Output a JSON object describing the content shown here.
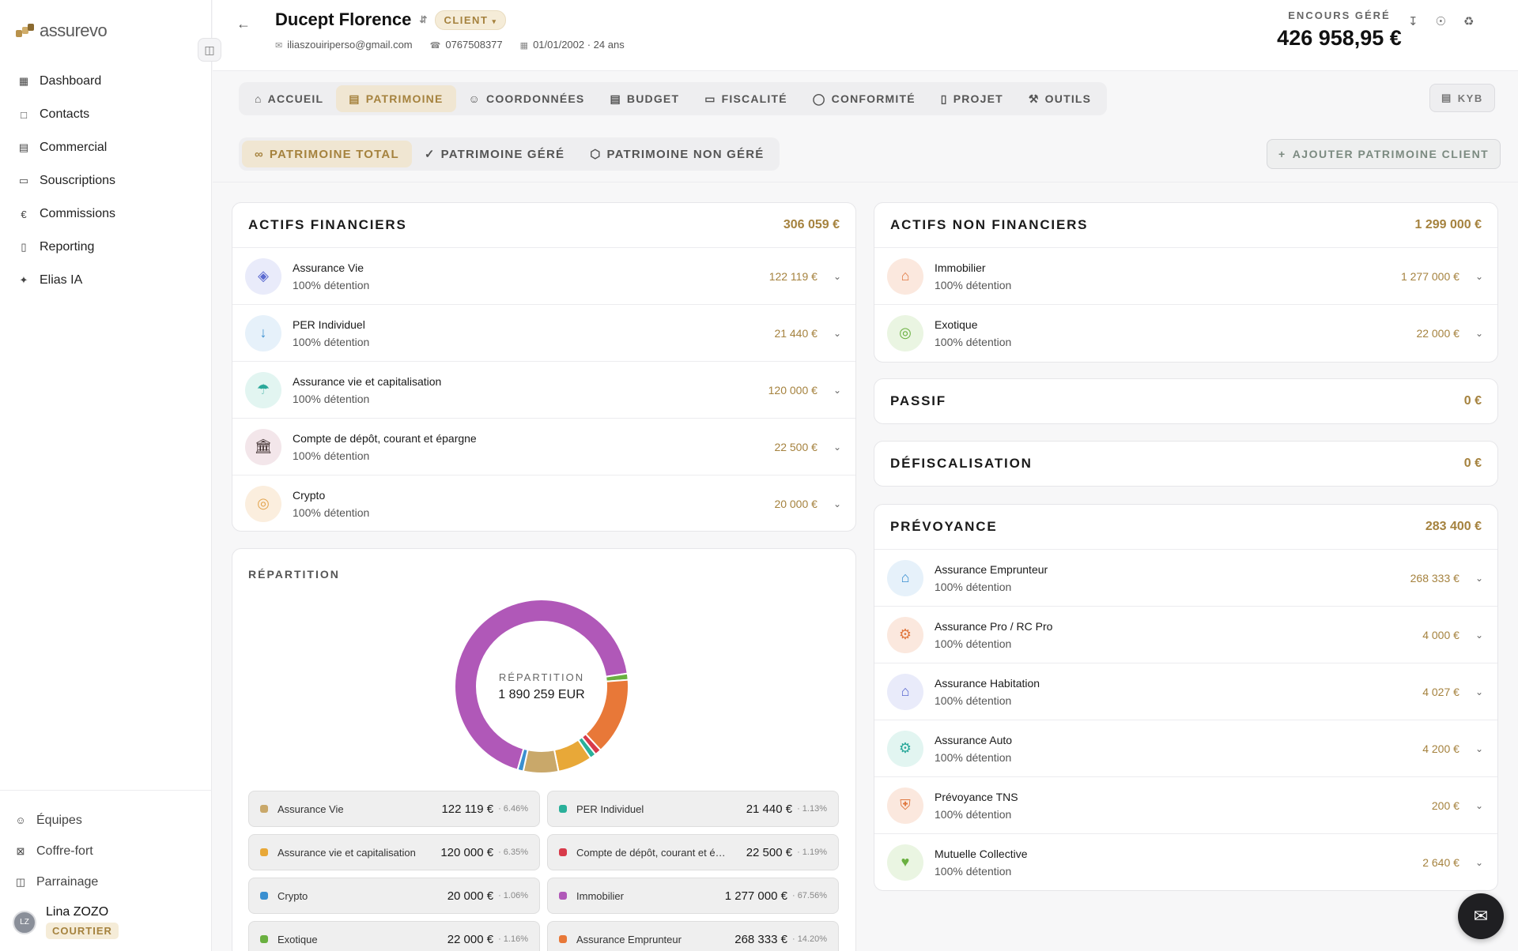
{
  "brand": {
    "name": "assurevo",
    "accent": "#a5823e"
  },
  "sidebar": {
    "items": [
      {
        "label": "Dashboard",
        "icon": "grid-icon"
      },
      {
        "label": "Contacts",
        "icon": "contact-icon"
      },
      {
        "label": "Commercial",
        "icon": "building-icon"
      },
      {
        "label": "Souscriptions",
        "icon": "document-icon"
      },
      {
        "label": "Commissions",
        "icon": "euro-icon"
      },
      {
        "label": "Reporting",
        "icon": "bar-chart-icon"
      },
      {
        "label": "Elias IA",
        "icon": "sparkle-icon"
      }
    ],
    "bottom": [
      {
        "label": "Équipes",
        "icon": "users-icon"
      },
      {
        "label": "Coffre-fort",
        "icon": "vault-icon"
      },
      {
        "label": "Parrainage",
        "icon": "gift-icon"
      }
    ],
    "user": {
      "initials": "LZ",
      "name": "Lina ZOZO",
      "role": "COURTIER"
    }
  },
  "header": {
    "client_name": "Ducept Florence",
    "badge": "CLIENT",
    "email": "iliaszouiriperso@gmail.com",
    "phone": "0767508377",
    "birth": "01/01/2002 · 24 ans",
    "encours_label": "ENCOURS GÉRÉ",
    "encours_value": "426 958,95 €"
  },
  "tabs": [
    "ACCUEIL",
    "PATRIMOINE",
    "COORDONNÉES",
    "BUDGET",
    "FISCALITÉ",
    "CONFORMITÉ",
    "PROJET",
    "OUTILS"
  ],
  "kyb_label": "KYB",
  "sub_tabs": [
    "PATRIMOINE TOTAL",
    "PATRIMOINE GÉRÉ",
    "PATRIMOINE NON GÉRÉ"
  ],
  "add_button": "AJOUTER PATRIMOINE CLIENT",
  "actifs_financiers": {
    "title": "ACTIFS FINANCIERS",
    "total": "306 059 €",
    "rows": [
      {
        "name": "Assurance Vie",
        "sub": "100% détention",
        "value": "122 119 €",
        "icon": "diamond-icon",
        "icon_color": "#5b6ad0",
        "bg": "#e9ebfa"
      },
      {
        "name": "PER Individuel",
        "sub": "100% détention",
        "value": "21 440 €",
        "icon": "arrow-down-icon",
        "icon_color": "#3a8fd0",
        "bg": "#e6f1fa"
      },
      {
        "name": "Assurance vie et capitalisation",
        "sub": "100% détention",
        "value": "120 000 €",
        "icon": "umbrella-icon",
        "icon_color": "#2aa89a",
        "bg": "#e2f5f1"
      },
      {
        "name": "Compte de dépôt, courant et épargne",
        "sub": "100% détention",
        "value": "22 500 €",
        "icon": "bank-icon",
        "icon_color": "#3a2a2a",
        "bg": "#f3e6ea"
      },
      {
        "name": "Crypto",
        "sub": "100% détention",
        "value": "20 000 €",
        "icon": "coin-icon",
        "icon_color": "#e3a550",
        "bg": "#fbeede"
      }
    ]
  },
  "actifs_non_financiers": {
    "title": "ACTIFS NON FINANCIERS",
    "total": "1 299 000 €",
    "rows": [
      {
        "name": "Immobilier",
        "sub": "100% détention",
        "value": "1 277 000 €",
        "icon": "house-icon",
        "icon_color": "#e07840",
        "bg": "#fbe8de"
      },
      {
        "name": "Exotique",
        "sub": "100% détention",
        "value": "22 000 €",
        "icon": "circle-icon",
        "icon_color": "#6ab040",
        "bg": "#eaf5e2"
      }
    ]
  },
  "passif": {
    "title": "PASSIF",
    "total": "0 €"
  },
  "defiscalisation": {
    "title": "DÉFISCALISATION",
    "total": "0 €"
  },
  "prevoyance": {
    "title": "PRÉVOYANCE",
    "total": "283 400 €",
    "rows": [
      {
        "name": "Assurance Emprunteur",
        "sub": "100% détention",
        "value": "268 333 €",
        "icon": "house-icon",
        "icon_color": "#3a8fd0",
        "bg": "#e6f1fa"
      },
      {
        "name": "Assurance Pro / RC Pro",
        "sub": "100% détention",
        "value": "4 000 €",
        "icon": "gear-icon",
        "icon_color": "#e07840",
        "bg": "#fbe8de"
      },
      {
        "name": "Assurance Habitation",
        "sub": "100% détention",
        "value": "4 027 €",
        "icon": "house-icon",
        "icon_color": "#5b6ad0",
        "bg": "#e9ebfa"
      },
      {
        "name": "Assurance Auto",
        "sub": "100% détention",
        "value": "4 200 €",
        "icon": "gear-icon",
        "icon_color": "#2aa89a",
        "bg": "#e2f5f1"
      },
      {
        "name": "Prévoyance TNS",
        "sub": "100% détention",
        "value": "200 €",
        "icon": "shield-plus-icon",
        "icon_color": "#e07840",
        "bg": "#fbe8de"
      },
      {
        "name": "Mutuelle Collective",
        "sub": "100% détention",
        "value": "2 640 €",
        "icon": "heart-icon",
        "icon_color": "#6ab040",
        "bg": "#eaf5e2"
      }
    ]
  },
  "repartition": {
    "title": "RÉPARTITION",
    "center_label": "RÉPARTITION",
    "center_value": "1 890 259 EUR"
  },
  "chart_data": {
    "type": "pie",
    "title": "RÉPARTITION",
    "slices": [
      {
        "name": "Assurance Vie",
        "value": 122119,
        "pct": "6.46%",
        "display": "122 119 €",
        "color": "#c9a86a"
      },
      {
        "name": "PER Individuel",
        "value": 21440,
        "pct": "1.13%",
        "display": "21 440 €",
        "color": "#2ab09a"
      },
      {
        "name": "Assurance vie et capitalisation",
        "value": 120000,
        "pct": "6.35%",
        "display": "120 000 €",
        "color": "#e8a838"
      },
      {
        "name": "Compte de dépôt, courant et é…",
        "value": 22500,
        "pct": "1.19%",
        "display": "22 500 €",
        "color": "#d83a4a"
      },
      {
        "name": "Crypto",
        "value": 20000,
        "pct": "1.06%",
        "display": "20 000 €",
        "color": "#3a8fd0"
      },
      {
        "name": "Immobilier",
        "value": 1277000,
        "pct": "67.56%",
        "display": "1 277 000 €",
        "color": "#b058b8"
      },
      {
        "name": "Exotique",
        "value": 22000,
        "pct": "1.16%",
        "display": "22 000 €",
        "color": "#6ab040"
      },
      {
        "name": "Assurance Emprunteur",
        "value": 268333,
        "pct": "14.20%",
        "display": "268 333 €",
        "color": "#e87838"
      }
    ]
  }
}
